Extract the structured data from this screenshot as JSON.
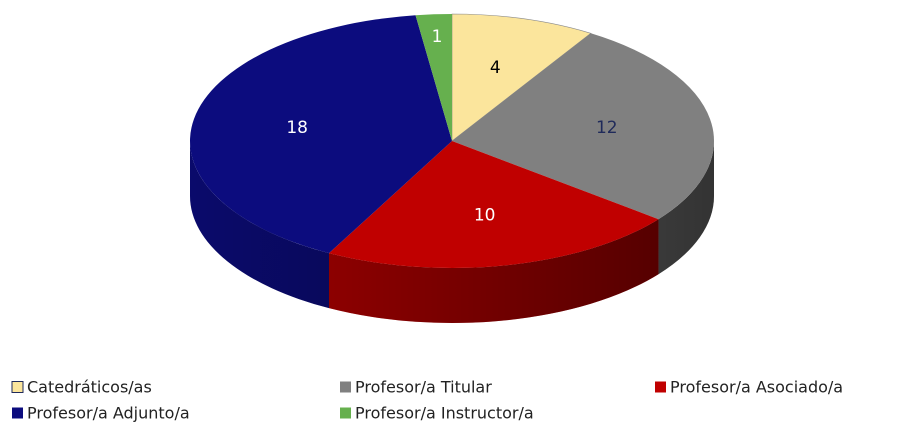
{
  "chart_data": {
    "type": "pie3d",
    "categories": [
      "Catedráticos/as",
      "Profesor/a Titular",
      "Profesor/a Asociado/a",
      "Profesor/a Adjunto/a",
      "Profesor/a Instructor/a"
    ],
    "values": [
      4,
      12,
      10,
      18,
      1
    ],
    "colors": [
      "#fbe59c",
      "#808080",
      "#c00000",
      "#0c0c7e",
      "#66b04e"
    ],
    "label_colors": [
      "#000000",
      "#1f2a5a",
      "#ffffff",
      "#ffffff",
      "#ffffff"
    ],
    "legend": "bottom"
  }
}
